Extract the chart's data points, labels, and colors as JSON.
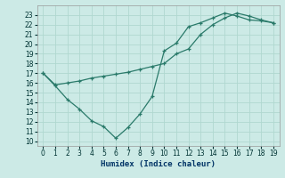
{
  "xlabel": "Humidex (Indice chaleur)",
  "bg_color": "#cceae6",
  "grid_color": "#b0d8d0",
  "line_color": "#2a7a6a",
  "xlim": [
    -0.5,
    19.5
  ],
  "ylim": [
    9.5,
    24.0
  ],
  "yticks": [
    10,
    11,
    12,
    13,
    14,
    15,
    16,
    17,
    18,
    19,
    20,
    21,
    22,
    23
  ],
  "xticks": [
    0,
    1,
    2,
    3,
    4,
    5,
    6,
    7,
    8,
    9,
    10,
    11,
    12,
    13,
    14,
    15,
    16,
    17,
    18,
    19
  ],
  "line1_x": [
    0,
    1,
    2,
    3,
    4,
    5,
    6,
    7,
    8,
    9,
    10,
    11,
    12,
    13,
    14,
    15,
    16,
    17,
    18,
    19
  ],
  "line1_y": [
    17.0,
    15.7,
    14.3,
    13.3,
    12.1,
    11.5,
    10.3,
    11.4,
    12.8,
    14.6,
    19.3,
    20.1,
    21.8,
    22.2,
    22.7,
    23.2,
    22.9,
    22.5,
    22.4,
    22.2
  ],
  "line2_x": [
    0,
    1,
    2,
    3,
    4,
    5,
    6,
    7,
    8,
    9,
    10,
    11,
    12,
    13,
    14,
    15,
    16,
    17,
    18,
    19
  ],
  "line2_y": [
    17.0,
    15.8,
    16.0,
    16.2,
    16.5,
    16.7,
    16.9,
    17.1,
    17.4,
    17.7,
    18.0,
    19.0,
    19.5,
    21.0,
    22.0,
    22.7,
    23.2,
    22.9,
    22.5,
    22.2
  ]
}
